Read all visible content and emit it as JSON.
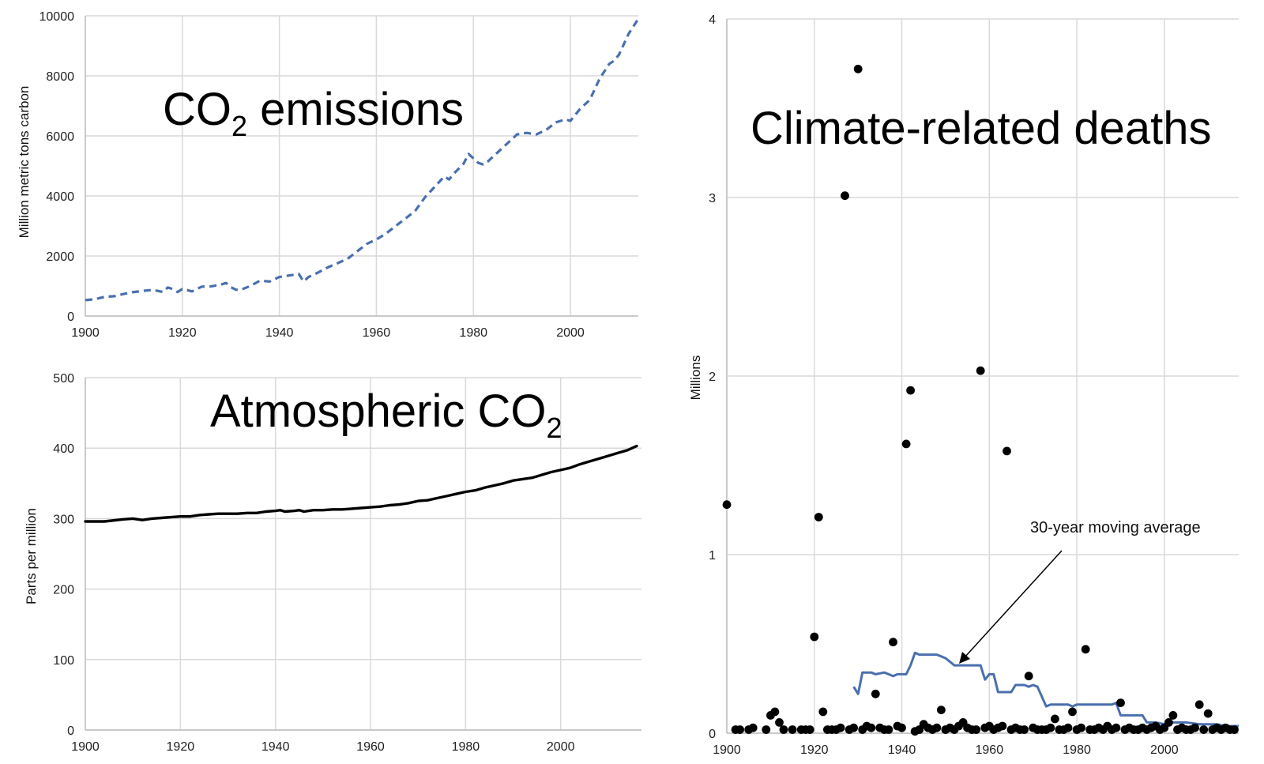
{
  "chart_data": [
    {
      "id": "emissions",
      "type": "line",
      "title_main": "CO",
      "title_sub": "2",
      "title_rest": " emissions",
      "ylabel": "Million metric tons carbon",
      "xlim": [
        1900,
        2014
      ],
      "ylim": [
        0,
        10000
      ],
      "x_ticks": [
        1900,
        1920,
        1940,
        1960,
        1980,
        2000
      ],
      "y_ticks": [
        0,
        2000,
        4000,
        6000,
        8000,
        10000
      ],
      "line_style": "dashed",
      "line_color": "#4a6faf",
      "series": [
        {
          "name": "CO2 emissions",
          "x": [
            1900,
            1902,
            1904,
            1906,
            1908,
            1910,
            1912,
            1914,
            1916,
            1917,
            1918,
            1919,
            1920,
            1922,
            1924,
            1926,
            1928,
            1929,
            1930,
            1931,
            1932,
            1934,
            1936,
            1938,
            1940,
            1942,
            1944,
            1945,
            1946,
            1948,
            1950,
            1952,
            1954,
            1956,
            1958,
            1960,
            1962,
            1964,
            1966,
            1968,
            1970,
            1972,
            1974,
            1975,
            1976,
            1978,
            1979,
            1980,
            1981,
            1982,
            1983,
            1985,
            1987,
            1989,
            1991,
            1993,
            1995,
            1997,
            1999,
            2000,
            2002,
            2004,
            2006,
            2008,
            2009,
            2010,
            2012,
            2014
          ],
          "y": [
            530,
            560,
            640,
            660,
            740,
            800,
            840,
            870,
            800,
            950,
            900,
            800,
            900,
            820,
            980,
            990,
            1050,
            1100,
            960,
            880,
            870,
            1000,
            1180,
            1150,
            1300,
            1350,
            1400,
            1150,
            1300,
            1450,
            1620,
            1760,
            1900,
            2150,
            2400,
            2550,
            2750,
            3000,
            3250,
            3500,
            3950,
            4300,
            4650,
            4550,
            4750,
            5080,
            5400,
            5250,
            5100,
            5050,
            5150,
            5450,
            5750,
            6050,
            6100,
            6050,
            6200,
            6450,
            6550,
            6500,
            6900,
            7200,
            7900,
            8400,
            8500,
            8700,
            9400,
            9900
          ]
        }
      ]
    },
    {
      "id": "atmospheric",
      "type": "line",
      "title_main": "Atmospheric CO",
      "title_sub": "2",
      "ylabel": "Parts per million",
      "xlim": [
        1900,
        2017
      ],
      "ylim": [
        0,
        500
      ],
      "x_ticks": [
        1900,
        1920,
        1940,
        1960,
        1980,
        2000
      ],
      "y_ticks": [
        0,
        100,
        200,
        300,
        400,
        500
      ],
      "line_style": "solid",
      "line_color": "#000000",
      "series": [
        {
          "name": "Atmospheric CO2",
          "x": [
            1900,
            1904,
            1908,
            1910,
            1912,
            1914,
            1916,
            1918,
            1920,
            1922,
            1924,
            1926,
            1928,
            1930,
            1932,
            1934,
            1936,
            1938,
            1940,
            1941,
            1942,
            1944,
            1945,
            1946,
            1948,
            1950,
            1952,
            1954,
            1956,
            1958,
            1960,
            1962,
            1964,
            1966,
            1968,
            1970,
            1972,
            1974,
            1976,
            1978,
            1980,
            1982,
            1984,
            1986,
            1988,
            1990,
            1992,
            1994,
            1996,
            1998,
            2000,
            2002,
            2004,
            2006,
            2008,
            2010,
            2012,
            2014,
            2016
          ],
          "y": [
            296,
            296,
            299,
            300,
            298,
            300,
            301,
            302,
            303,
            303,
            305,
            306,
            307,
            307,
            307,
            308,
            308,
            310,
            311,
            312,
            310,
            311,
            312,
            310,
            312,
            312,
            313,
            313,
            314,
            315,
            316,
            317,
            319,
            320,
            322,
            325,
            326,
            329,
            332,
            335,
            338,
            340,
            344,
            347,
            350,
            354,
            356,
            358,
            362,
            366,
            369,
            372,
            377,
            381,
            385,
            389,
            393,
            397,
            403
          ]
        }
      ]
    },
    {
      "id": "deaths",
      "type": "scatter",
      "title": "Climate-related deaths",
      "ylabel": "Millions",
      "xlim": [
        1900,
        2017
      ],
      "ylim": [
        0,
        4
      ],
      "x_ticks": [
        1900,
        1920,
        1940,
        1960,
        1980,
        2000
      ],
      "y_ticks": [
        0,
        1,
        2,
        3,
        4
      ],
      "annotation": "30-year moving average",
      "scatter": {
        "x": [
          1900,
          1920,
          1921,
          1922,
          1927,
          1930,
          1934,
          1938,
          1941,
          1942,
          1943,
          1949,
          1958,
          1964,
          1969,
          1982,
          1990,
          2008,
          1910,
          1911,
          1912,
          1975,
          1979,
          2002,
          2010,
          1902,
          1903,
          1905,
          1906,
          1909,
          1913,
          1915,
          1917,
          1918,
          1919,
          1923,
          1924,
          1925,
          1926,
          1928,
          1929,
          1931,
          1932,
          1933,
          1935,
          1936,
          1937,
          1939,
          1940,
          1944,
          1945,
          1946,
          1947,
          1948,
          1950,
          1951,
          1952,
          1953,
          1954,
          1955,
          1956,
          1957,
          1959,
          1960,
          1961,
          1962,
          1963,
          1965,
          1966,
          1967,
          1968,
          1970,
          1971,
          1972,
          1973,
          1974,
          1976,
          1977,
          1978,
          1980,
          1981,
          1983,
          1984,
          1985,
          1986,
          1987,
          1988,
          1989,
          1991,
          1992,
          1993,
          1994,
          1995,
          1996,
          1997,
          1998,
          1999,
          2000,
          2001,
          2003,
          2004,
          2005,
          2006,
          2007,
          2009,
          2011,
          2012,
          2013,
          2014,
          2015,
          2016
        ],
        "y": [
          1.28,
          0.54,
          1.21,
          0.12,
          3.01,
          3.72,
          0.22,
          0.51,
          1.62,
          1.92,
          0.01,
          0.13,
          2.03,
          1.58,
          0.32,
          0.47,
          0.17,
          0.16,
          0.1,
          0.12,
          0.06,
          0.08,
          0.12,
          0.1,
          0.11,
          0.02,
          0.02,
          0.02,
          0.03,
          0.02,
          0.02,
          0.02,
          0.02,
          0.02,
          0.02,
          0.02,
          0.02,
          0.02,
          0.03,
          0.02,
          0.03,
          0.02,
          0.04,
          0.03,
          0.03,
          0.02,
          0.02,
          0.04,
          0.03,
          0.02,
          0.05,
          0.03,
          0.02,
          0.03,
          0.02,
          0.03,
          0.02,
          0.04,
          0.06,
          0.03,
          0.02,
          0.02,
          0.03,
          0.04,
          0.02,
          0.03,
          0.04,
          0.02,
          0.03,
          0.02,
          0.02,
          0.03,
          0.02,
          0.02,
          0.02,
          0.03,
          0.02,
          0.02,
          0.03,
          0.02,
          0.03,
          0.02,
          0.02,
          0.03,
          0.02,
          0.04,
          0.02,
          0.03,
          0.02,
          0.03,
          0.02,
          0.02,
          0.03,
          0.02,
          0.03,
          0.04,
          0.02,
          0.03,
          0.06,
          0.02,
          0.03,
          0.02,
          0.02,
          0.03,
          0.02,
          0.02,
          0.03,
          0.02,
          0.03,
          0.02,
          0.02
        ]
      },
      "moving_average": {
        "name": "30-year moving average",
        "color": "#4a6faf",
        "x": [
          1929,
          1930,
          1931,
          1933,
          1934,
          1936,
          1937,
          1938,
          1939,
          1941,
          1942,
          1943,
          1944,
          1945,
          1947,
          1948,
          1949,
          1950,
          1951,
          1952,
          1953,
          1955,
          1957,
          1958,
          1959,
          1960,
          1961,
          1962,
          1965,
          1966,
          1968,
          1969,
          1970,
          1971,
          1973,
          1974,
          1976,
          1978,
          1979,
          1980,
          1982,
          1984,
          1986,
          1988,
          1989,
          1990,
          1993,
          1995,
          1996,
          1998,
          2000,
          2002,
          2005,
          2008,
          2012,
          2014,
          2017
        ],
        "y": [
          0.26,
          0.22,
          0.34,
          0.34,
          0.33,
          0.34,
          0.33,
          0.32,
          0.33,
          0.33,
          0.38,
          0.45,
          0.44,
          0.44,
          0.44,
          0.44,
          0.43,
          0.42,
          0.4,
          0.38,
          0.38,
          0.38,
          0.38,
          0.38,
          0.3,
          0.33,
          0.33,
          0.23,
          0.23,
          0.27,
          0.27,
          0.26,
          0.27,
          0.26,
          0.15,
          0.16,
          0.16,
          0.16,
          0.15,
          0.16,
          0.16,
          0.16,
          0.16,
          0.16,
          0.17,
          0.1,
          0.1,
          0.1,
          0.06,
          0.06,
          0.05,
          0.06,
          0.06,
          0.05,
          0.05,
          0.04,
          0.04
        ]
      }
    }
  ]
}
